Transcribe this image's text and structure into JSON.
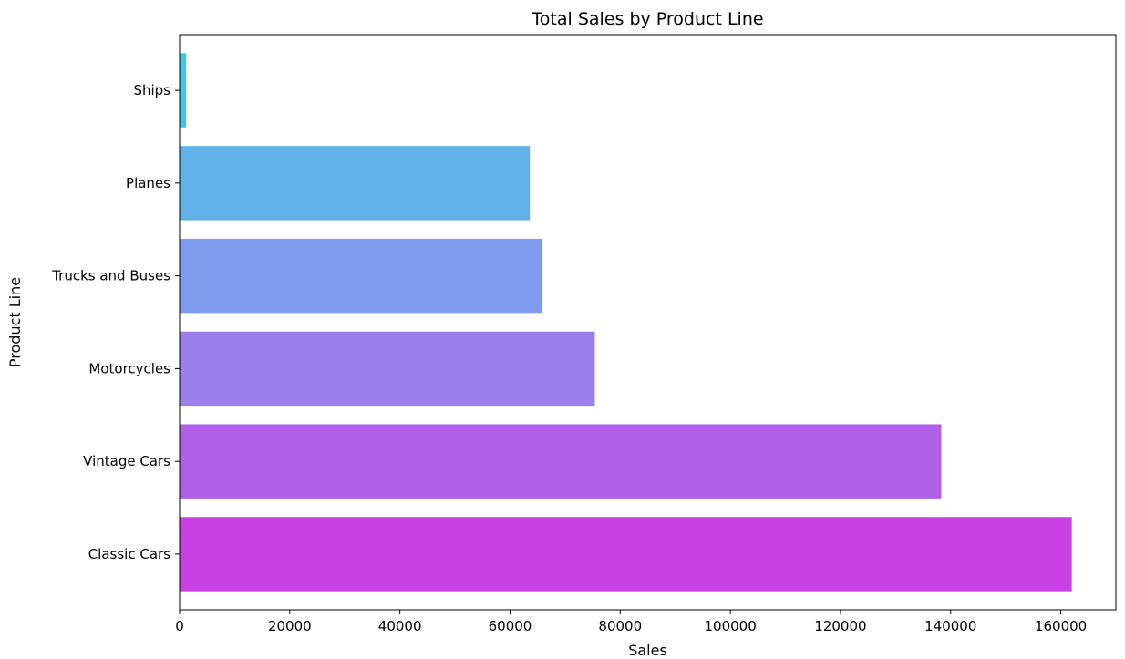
{
  "chart_data": {
    "type": "bar",
    "orientation": "horizontal",
    "title": "Total Sales by Product Line",
    "xlabel": "Sales",
    "ylabel": "Product Line",
    "categories": [
      "Classic Cars",
      "Vintage Cars",
      "Motorcycles",
      "Trucks and Buses",
      "Planes",
      "Ships"
    ],
    "values": [
      162000,
      138300,
      75400,
      65900,
      63600,
      1200
    ],
    "colors": [
      "#c840e3",
      "#b05fe8",
      "#9b7fed",
      "#7e9bee",
      "#61b1e8",
      "#3dc7ea"
    ],
    "xlim": [
      0,
      170000
    ],
    "xticks": [
      0,
      20000,
      40000,
      60000,
      80000,
      100000,
      120000,
      140000,
      160000
    ],
    "xtick_labels": [
      "0",
      "20000",
      "40000",
      "60000",
      "80000",
      "100000",
      "120000",
      "140000",
      "160000"
    ],
    "grid": false,
    "legend": "none"
  }
}
